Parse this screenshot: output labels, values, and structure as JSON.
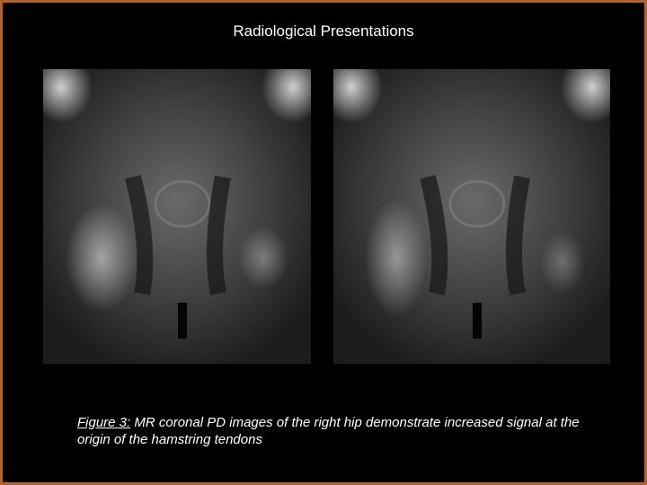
{
  "title": "Radiological Presentations",
  "figure": {
    "label": "Figure 3:",
    "caption": "MR coronal PD images of the right hip demonstrate increased signal at the origin of the hamstring tendons"
  }
}
